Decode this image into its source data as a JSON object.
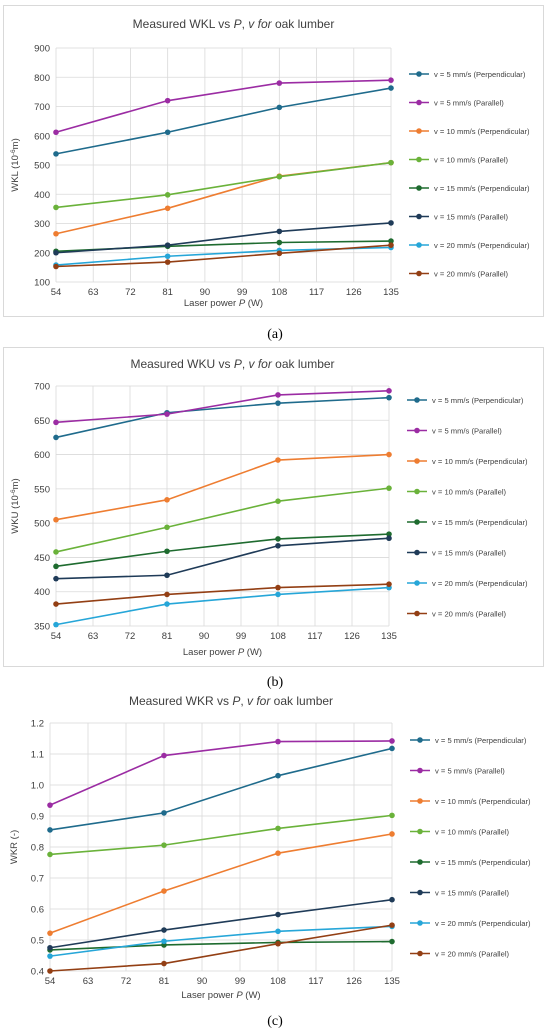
{
  "colors": {
    "c1": "#1f6b8c",
    "c2": "#9b2ca3",
    "c3": "#ee7d31",
    "c4": "#6ab23a",
    "c5": "#1e6b2f",
    "c6": "#1f3b58",
    "c7": "#26a6d8",
    "c8": "#933f14"
  },
  "captions": [
    "(a)",
    "(b)",
    "(c)"
  ],
  "chart_data": [
    {
      "type": "line",
      "title": "Measured WKL vs ",
      "title_italic_p": "P",
      "title_sep": ", ",
      "title_italic_v": "v for",
      "title_tail": " oak lumber",
      "ylabel": "WKL (10",
      "ylabel_sup": "-6",
      "ylabel_tail": "m)",
      "xlabel": "Laser power ",
      "xlabel_italic": "P",
      "xlabel_tail": " (W)",
      "xlim": [
        54,
        135
      ],
      "ylim": [
        100,
        900
      ],
      "xticks": [
        54,
        63,
        72,
        81,
        90,
        99,
        108,
        117,
        126,
        135
      ],
      "xtick_labels": [
        "54",
        "63",
        "72",
        "81",
        "90",
        "99",
        "108",
        "117",
        "126",
        "135"
      ],
      "yticks": [
        100,
        200,
        300,
        400,
        500,
        600,
        700,
        800,
        900
      ],
      "ytick_labels": [
        "100",
        "200",
        "300",
        "400",
        "500",
        "600",
        "700",
        "800",
        "900"
      ],
      "x": [
        54,
        81,
        108,
        135
      ],
      "series": [
        {
          "name": "v = 5 mm/s (Perpendicular)",
          "color": "#1f6b8c",
          "values": [
            538,
            612,
            697,
            763
          ]
        },
        {
          "name": "v = 5 mm/s (Parallel)",
          "color": "#9b2ca3",
          "values": [
            612,
            720,
            780,
            790
          ]
        },
        {
          "name": "v = 10 mm/s (Perpendicular)",
          "color": "#ee7d31",
          "values": [
            265,
            352,
            462,
            508
          ]
        },
        {
          "name": "v = 10 mm/s (Parallel)",
          "color": "#6ab23a",
          "values": [
            355,
            398,
            460,
            508
          ]
        },
        {
          "name": "v = 15 mm/s (Perpendicular)",
          "color": "#1e6b2f",
          "values": [
            205,
            222,
            235,
            240
          ]
        },
        {
          "name": "v = 15 mm/s (Parallel)",
          "color": "#1f3b58",
          "values": [
            200,
            226,
            273,
            302
          ]
        },
        {
          "name": "v = 20 mm/s (Perpendicular)",
          "color": "#26a6d8",
          "values": [
            158,
            188,
            208,
            218
          ]
        },
        {
          "name": "v = 20 mm/s (Parallel)",
          "color": "#933f14",
          "values": [
            153,
            168,
            198,
            226
          ]
        }
      ],
      "grid": true,
      "legend": "right"
    },
    {
      "type": "line",
      "title": "Measured WKU vs ",
      "title_italic_p": "P",
      "title_sep": ", ",
      "title_italic_v": "v for",
      "title_tail": " oak lumber",
      "ylabel": "WKU (10",
      "ylabel_sup": "-6",
      "ylabel_tail": "m)",
      "xlabel": "Laser power ",
      "xlabel_italic": "P",
      "xlabel_tail": " (W)",
      "xlim": [
        54,
        135
      ],
      "ylim": [
        350,
        700
      ],
      "xticks": [
        54,
        63,
        72,
        81,
        90,
        99,
        108,
        117,
        126,
        135
      ],
      "xtick_labels": [
        "54",
        "63",
        "72",
        "81",
        "90",
        "99",
        "108",
        "117",
        "126",
        "135"
      ],
      "yticks": [
        350,
        400,
        450,
        500,
        550,
        600,
        650,
        700
      ],
      "ytick_labels": [
        "350",
        "400",
        "450",
        "500",
        "550",
        "600",
        "650",
        "700"
      ],
      "x": [
        54,
        81,
        108,
        135
      ],
      "series": [
        {
          "name": "v = 5 mm/s (Perpendicular)",
          "color": "#1f6b8c",
          "values": [
            625,
            661,
            675,
            683
          ]
        },
        {
          "name": "v = 5 mm/s (Parallel)",
          "color": "#9b2ca3",
          "values": [
            647,
            659,
            687,
            693
          ]
        },
        {
          "name": "v = 10 mm/s (Perpendicular)",
          "color": "#ee7d31",
          "values": [
            505,
            534,
            592,
            600
          ]
        },
        {
          "name": "v = 10 mm/s (Parallel)",
          "color": "#6ab23a",
          "values": [
            458,
            494,
            532,
            551
          ]
        },
        {
          "name": "v = 15 mm/s (Perpendicular)",
          "color": "#1e6b2f",
          "values": [
            437,
            459,
            477,
            484
          ]
        },
        {
          "name": "v = 15 mm/s (Parallel)",
          "color": "#1f3b58",
          "values": [
            419,
            424,
            467,
            478
          ]
        },
        {
          "name": "v = 20 mm/s (Perpendicular)",
          "color": "#26a6d8",
          "values": [
            352,
            382,
            396,
            406
          ]
        },
        {
          "name": "v = 20 mm/s (Parallel)",
          "color": "#933f14",
          "values": [
            382,
            396,
            406,
            411
          ]
        }
      ],
      "grid": true,
      "legend": "right"
    },
    {
      "type": "line",
      "title": "Measured WKR vs ",
      "title_italic_p": "P",
      "title_sep": ", ",
      "title_italic_v": "v for",
      "title_tail": " oak lumber",
      "ylabel": "WKR (-)",
      "ylabel_sup": "",
      "ylabel_tail": "",
      "xlabel": "Laser power ",
      "xlabel_italic": "P",
      "xlabel_tail": " (W)",
      "xlim": [
        54,
        135
      ],
      "ylim": [
        0.4,
        1.2
      ],
      "xticks": [
        54,
        63,
        72,
        81,
        90,
        99,
        108,
        117,
        126,
        135
      ],
      "xtick_labels": [
        "54",
        "63",
        "72",
        "81",
        "90",
        "99",
        "108",
        "117",
        "126",
        "135"
      ],
      "yticks": [
        0.4,
        0.5,
        0.6,
        0.7,
        0.8,
        0.9,
        1.0,
        1.1,
        1.2
      ],
      "ytick_labels": [
        "0.4",
        "0.5",
        "0.6",
        "0.7",
        "0.8",
        "0.9",
        "1.0",
        "1.1",
        "1.2"
      ],
      "x": [
        54,
        81,
        108,
        135
      ],
      "series": [
        {
          "name": "v = 5 mm/s (Perpendicular)",
          "color": "#1f6b8c",
          "values": [
            0.855,
            0.91,
            1.03,
            1.118
          ]
        },
        {
          "name": "v = 5 mm/s (Parallel)",
          "color": "#9b2ca3",
          "values": [
            0.935,
            1.095,
            1.14,
            1.142
          ]
        },
        {
          "name": "v = 10 mm/s (Perpendicular)",
          "color": "#ee7d31",
          "values": [
            0.522,
            0.658,
            0.78,
            0.842
          ]
        },
        {
          "name": "v = 10 mm/s (Parallel)",
          "color": "#6ab23a",
          "values": [
            0.776,
            0.806,
            0.86,
            0.902
          ]
        },
        {
          "name": "v = 15 mm/s (Perpendicular)",
          "color": "#1e6b2f",
          "values": [
            0.468,
            0.484,
            0.492,
            0.495
          ]
        },
        {
          "name": "v = 15 mm/s (Parallel)",
          "color": "#1f3b58",
          "values": [
            0.475,
            0.532,
            0.582,
            0.63
          ]
        },
        {
          "name": "v = 20 mm/s (Perpendicular)",
          "color": "#26a6d8",
          "values": [
            0.448,
            0.496,
            0.528,
            0.544
          ]
        },
        {
          "name": "v = 20 mm/s (Parallel)",
          "color": "#933f14",
          "values": [
            0.4,
            0.424,
            0.488,
            0.548
          ]
        }
      ],
      "grid": true,
      "legend": "right"
    }
  ]
}
